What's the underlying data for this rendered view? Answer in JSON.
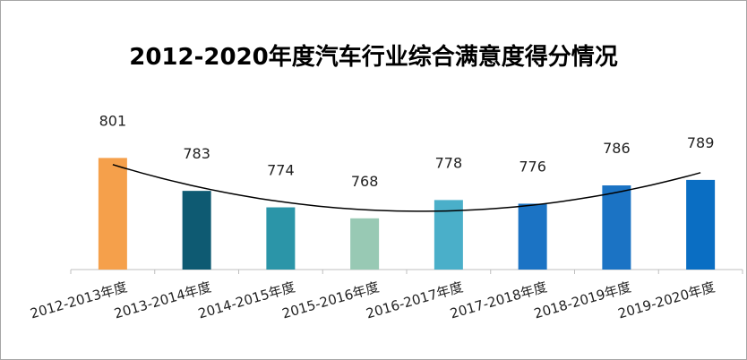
{
  "chart_data": {
    "type": "bar",
    "title": "2012-2020年度汽车行业综合满意度得分情况",
    "categories": [
      "2012-2013年度",
      "2013-2014年度",
      "2014-2015年度",
      "2015-2016年度",
      "2016-2017年度",
      "2017-2018年度",
      "2018-2019年度",
      "2019-2020年度"
    ],
    "values": [
      801,
      783,
      774,
      768,
      778,
      776,
      786,
      789
    ],
    "colors": [
      "#F5A04B",
      "#0E5A72",
      "#2B95A8",
      "#98C9B4",
      "#4AAFC9",
      "#1B73C4",
      "#1B73C4",
      "#0A6EC3"
    ],
    "trendline": "polynomial",
    "trendline_color": "#000000",
    "ylim": [
      740,
      810
    ],
    "xlabel": "",
    "ylabel": "",
    "grid": false,
    "legend": "none"
  }
}
